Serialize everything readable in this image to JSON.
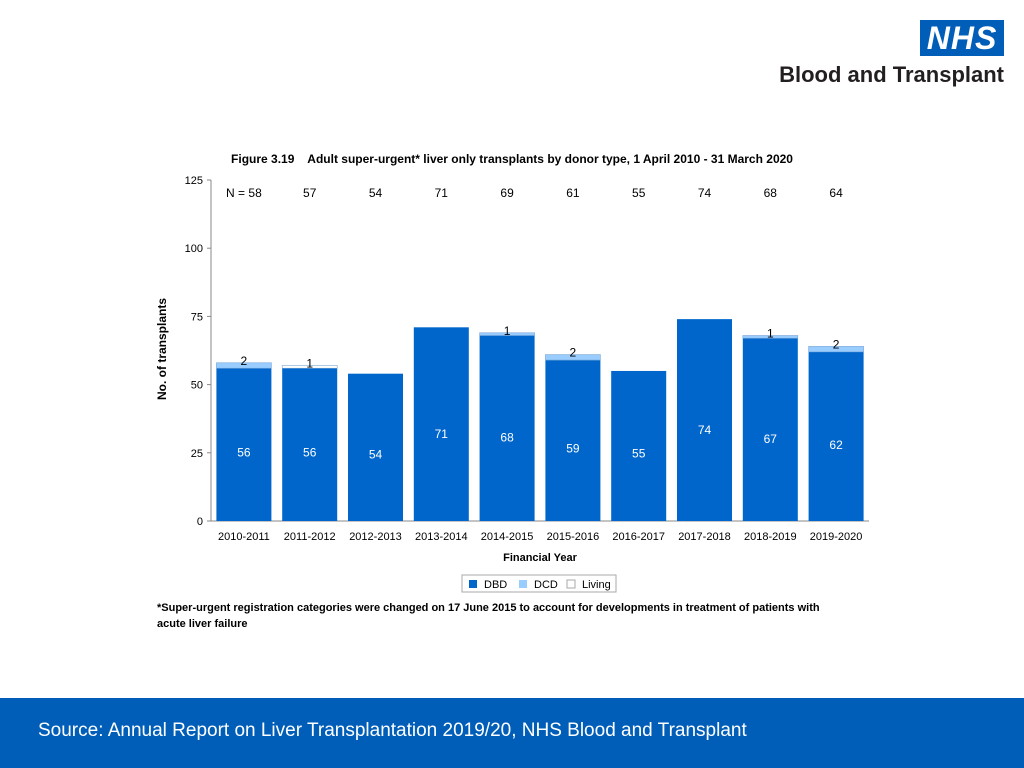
{
  "brand": {
    "badge": "NHS",
    "name": "Blood and Transplant"
  },
  "chart_data": {
    "type": "bar",
    "stacked": true,
    "title": "Figure 3.19    Adult super-urgent* liver only transplants by donor type, 1 April 2010 - 31 March 2020",
    "xlabel": "Financial Year",
    "ylabel": "No. of transplants",
    "ylim": [
      0,
      125
    ],
    "yticks": [
      0,
      25,
      50,
      75,
      100,
      125
    ],
    "categories": [
      "2010-2011",
      "2011-2012",
      "2012-2013",
      "2013-2014",
      "2014-2015",
      "2015-2016",
      "2016-2017",
      "2017-2018",
      "2018-2019",
      "2019-2020"
    ],
    "series": [
      {
        "name": "DBD",
        "color": "#0066cc",
        "values": [
          56,
          56,
          54,
          71,
          68,
          59,
          55,
          74,
          67,
          62
        ]
      },
      {
        "name": "DCD",
        "color": "#99ccff",
        "values": [
          2,
          0,
          0,
          0,
          1,
          2,
          0,
          0,
          1,
          2
        ]
      },
      {
        "name": "Living",
        "color": "#ffffff",
        "values": [
          0,
          1,
          0,
          0,
          0,
          0,
          0,
          0,
          0,
          0
        ]
      }
    ],
    "n_prefix": "N = ",
    "totals": [
      58,
      57,
      54,
      71,
      69,
      61,
      55,
      74,
      68,
      64
    ],
    "legend": [
      "DBD",
      "DCD",
      "Living"
    ],
    "legend_position": "bottom-center",
    "grid": false
  },
  "footnote": "*Super-urgent registration categories were changed on 17 June 2015 to account for developments in treatment of patients with acute liver failure",
  "source": "Source: Annual Report on Liver Transplantation 2019/20, NHS Blood and Transplant"
}
